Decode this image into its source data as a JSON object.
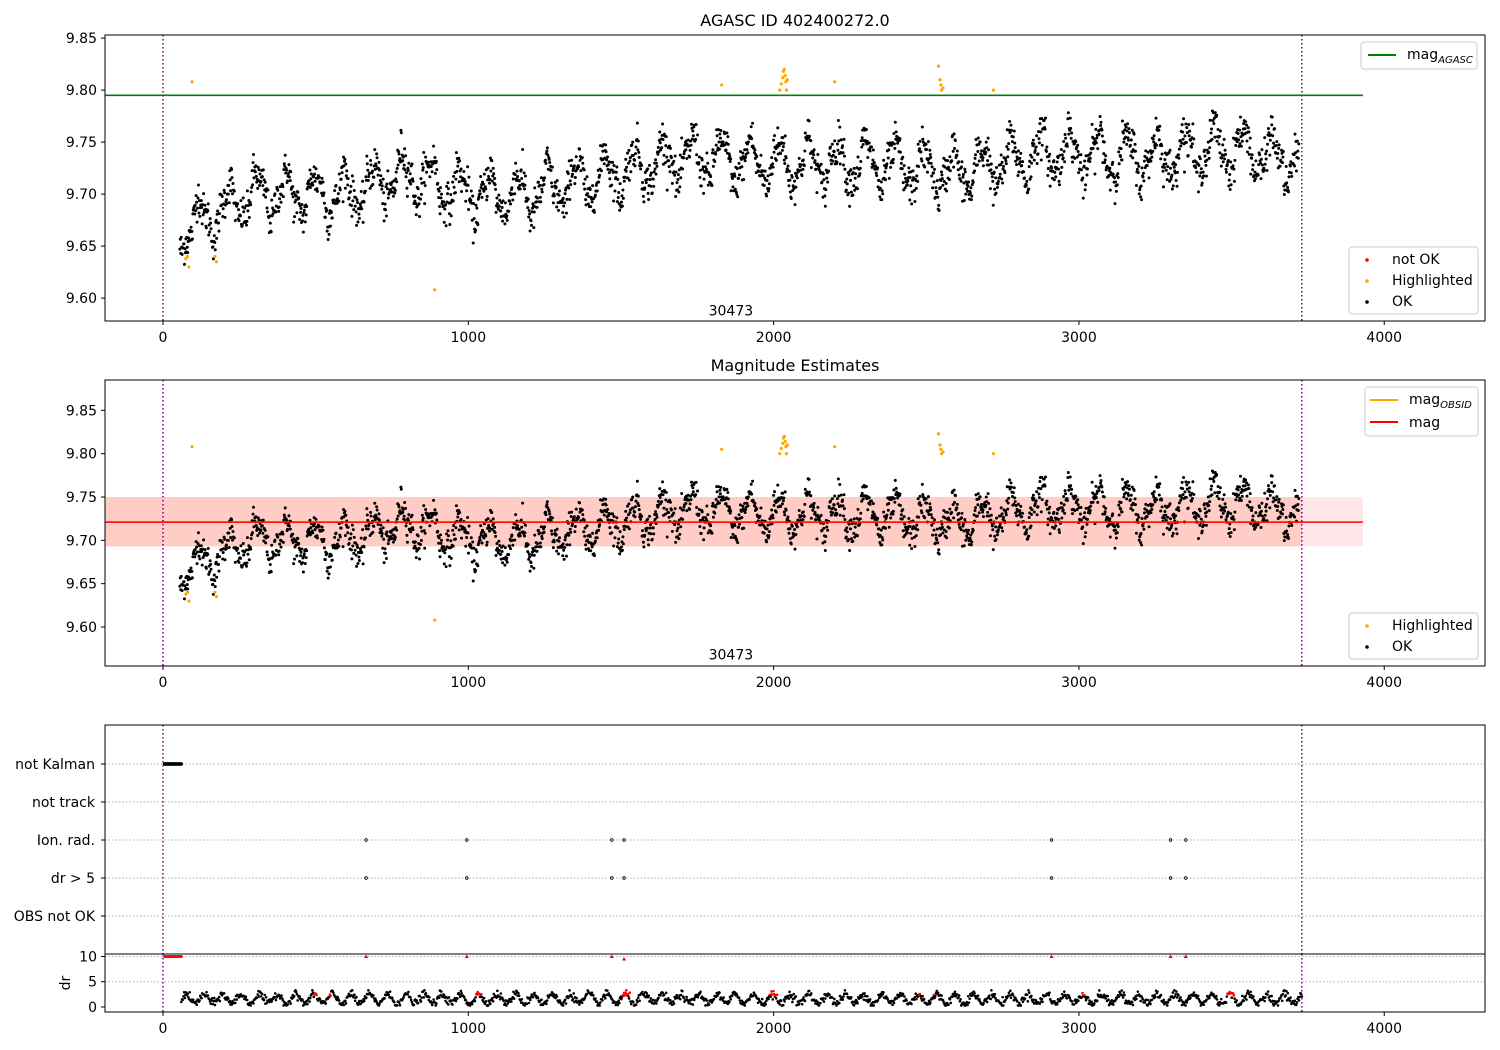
{
  "chart_data": [
    {
      "type": "scatter",
      "title": "AGASC ID 402400272.0",
      "x_ticks": [
        0,
        1000,
        2000,
        3000,
        4000
      ],
      "xlim": [
        -190,
        4330
      ],
      "y_ticks": [
        "9.60",
        "9.65",
        "9.70",
        "9.75",
        "9.80",
        "9.85"
      ],
      "ylim": [
        9.578,
        9.853
      ],
      "vlines": [
        0,
        3730
      ],
      "obsid_label": {
        "x": 1860,
        "y": 9.585,
        "text": "30473"
      },
      "hlines": [
        {
          "name": "mag_AGASC",
          "y": 9.795,
          "x_range": [
            -190,
            3930
          ],
          "color": "#008000"
        }
      ],
      "legends": [
        {
          "position": "top-right",
          "entries": [
            {
              "kind": "line",
              "label": "mag",
              "sub": "AGASC",
              "color": "#008000"
            }
          ]
        },
        {
          "position": "bottom-right",
          "entries": [
            {
              "kind": "dot",
              "label": "not OK",
              "color": "#ff0000"
            },
            {
              "kind": "dot",
              "label": "Highlighted",
              "color": "#ffa500"
            },
            {
              "kind": "dot",
              "label": "OK",
              "color": "#000000"
            }
          ]
        }
      ],
      "series": [
        {
          "name": "OK",
          "color": "#000000",
          "kind": "light_curve",
          "x_range": [
            55,
            3720
          ],
          "trend": [
            [
              55,
              9.665
            ],
            [
              300,
              9.7
            ],
            [
              600,
              9.7
            ],
            [
              800,
              9.72
            ],
            [
              1000,
              9.7
            ],
            [
              1200,
              9.7
            ],
            [
              1400,
              9.715
            ],
            [
              1700,
              9.735
            ],
            [
              2000,
              9.73
            ],
            [
              2300,
              9.73
            ],
            [
              2600,
              9.72
            ],
            [
              2900,
              9.74
            ],
            [
              3200,
              9.735
            ],
            [
              3500,
              9.745
            ],
            [
              3720,
              9.73
            ]
          ],
          "amplitude": 0.02,
          "noise": 0.009
        },
        {
          "name": "Highlighted",
          "color": "#ffa500",
          "points": [
            [
              75,
              9.638
            ],
            [
              80,
              9.64
            ],
            [
              85,
              9.63
            ],
            [
              95,
              9.808
            ],
            [
              170,
              9.64
            ],
            [
              175,
              9.635
            ],
            [
              890,
              9.608
            ],
            [
              1830,
              9.805
            ],
            [
              2020,
              9.8
            ],
            [
              2025,
              9.806
            ],
            [
              2030,
              9.812
            ],
            [
              2032,
              9.818
            ],
            [
              2035,
              9.82
            ],
            [
              2038,
              9.814
            ],
            [
              2040,
              9.808
            ],
            [
              2042,
              9.8
            ],
            [
              2045,
              9.81
            ],
            [
              2200,
              9.808
            ],
            [
              2540,
              9.823
            ],
            [
              2545,
              9.81
            ],
            [
              2548,
              9.805
            ],
            [
              2550,
              9.8
            ],
            [
              2555,
              9.802
            ],
            [
              2720,
              9.8
            ]
          ]
        }
      ]
    },
    {
      "type": "scatter",
      "title": "Magnitude Estimates",
      "x_ticks": [
        0,
        1000,
        2000,
        3000,
        4000
      ],
      "xlim": [
        -190,
        4330
      ],
      "y_ticks": [
        "9.60",
        "9.65",
        "9.70",
        "9.75",
        "9.80",
        "9.85"
      ],
      "ylim": [
        9.555,
        9.885
      ],
      "vlines": [
        0,
        3730
      ],
      "obsid_label": {
        "x": 1860,
        "y": 9.565,
        "text": "30473"
      },
      "bands": [
        {
          "name": "mag_OBSID",
          "y_range": [
            9.693,
            9.75
          ],
          "x_range": [
            -190,
            3730
          ],
          "color": "#ffa07a",
          "opacity": 0.4
        },
        {
          "name": "mag",
          "y_range": [
            9.693,
            9.75
          ],
          "x_range": [
            -190,
            3930
          ],
          "color": "#ffb6c1",
          "opacity": 0.35
        }
      ],
      "hlines": [
        {
          "name": "mag_OBSID",
          "y": 9.721,
          "x_range": [
            -190,
            3730
          ],
          "color": "#ffa500"
        },
        {
          "name": "mag",
          "y": 9.721,
          "x_range": [
            -190,
            3930
          ],
          "color": "#ff0000"
        }
      ],
      "legends": [
        {
          "position": "top-right",
          "entries": [
            {
              "kind": "line",
              "label": "mag",
              "sub": "OBSID",
              "color": "#ffa500"
            },
            {
              "kind": "line",
              "label": "mag",
              "sub": "",
              "color": "#ff0000"
            }
          ]
        },
        {
          "position": "bottom-right",
          "entries": [
            {
              "kind": "dot",
              "label": "Highlighted",
              "color": "#ffa500"
            },
            {
              "kind": "dot",
              "label": "OK",
              "color": "#000000"
            }
          ]
        }
      ]
    },
    {
      "type": "scatter",
      "title": "",
      "categories": [
        "not Kalman",
        "not track",
        "Ion. rad.",
        "dr > 5",
        "OBS not OK"
      ],
      "xlim": [
        -190,
        4330
      ],
      "vlines": [
        0,
        3730
      ],
      "series": [
        {
          "name": "not Kalman",
          "x_range": [
            5,
            60
          ],
          "color": "#000000"
        },
        {
          "name": "not track",
          "x": [],
          "color": "#000000"
        },
        {
          "name": "Ion. rad.",
          "x": [
            665,
            995,
            1470,
            1510,
            2910,
            3300,
            3350
          ],
          "color": "#000000"
        },
        {
          "name": "dr > 5",
          "x": [
            665,
            995,
            1470,
            1510,
            2910,
            3300,
            3350
          ],
          "color": "#000000"
        },
        {
          "name": "OBS not OK",
          "x": [],
          "color": "#000000"
        }
      ]
    },
    {
      "type": "scatter",
      "title": "",
      "ylabel": "dr",
      "x_ticks": [
        0,
        1000,
        2000,
        3000,
        4000
      ],
      "xlim": [
        -190,
        4330
      ],
      "y_ticks": [
        "0",
        "5",
        "10"
      ],
      "ylim": [
        -1,
        10.5
      ],
      "vlines": [
        0,
        3730
      ],
      "hlines": [
        {
          "y": 10,
          "style": "dotted"
        },
        {
          "y": 5,
          "style": "dotted"
        }
      ],
      "series": [
        {
          "name": "dr",
          "color": "#000000",
          "x_range": [
            60,
            3730
          ],
          "typical": [
            0.5,
            3.0
          ]
        },
        {
          "name": "dr > 5",
          "color": "#ff0000",
          "points": [
            [
              665,
              10
            ],
            [
              995,
              10
            ],
            [
              1470,
              10
            ],
            [
              1510,
              9.5
            ],
            [
              2910,
              10
            ],
            [
              3300,
              10
            ],
            [
              3350,
              10
            ]
          ],
          "cluster": [
            5,
            60,
            10
          ]
        }
      ]
    }
  ]
}
